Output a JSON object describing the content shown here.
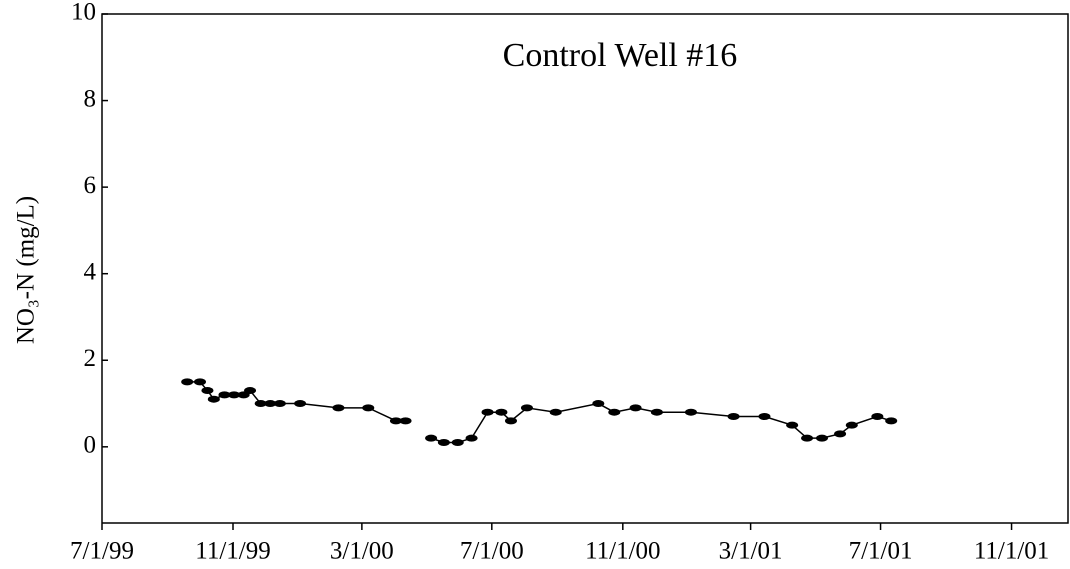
{
  "chart_data": {
    "type": "line",
    "title": "Control Well #16",
    "y_label": "NO₃-N (mg/L)",
    "x": [
      "1999-09-19",
      "1999-10-01",
      "1999-10-08",
      "1999-10-14",
      "1999-10-24",
      "1999-11-02",
      "1999-11-11",
      "1999-11-17",
      "1999-11-27",
      "1999-12-06",
      "1999-12-15",
      "2000-01-03",
      "2000-02-08",
      "2000-03-07",
      "2000-04-02",
      "2000-04-11",
      null,
      "2000-05-05",
      "2000-05-17",
      "2000-05-30",
      "2000-06-12",
      "2000-06-27",
      "2000-07-10",
      "2000-07-19",
      "2000-08-03",
      "2000-08-30",
      "2000-10-09",
      "2000-10-24",
      "2000-11-13",
      "2000-12-03",
      "2001-01-04",
      "2001-02-13",
      "2001-03-14",
      "2001-04-09",
      "2001-04-23",
      "2001-05-07",
      "2001-05-24",
      "2001-06-04",
      "2001-06-28",
      "2001-07-11"
    ],
    "series": [
      {
        "color": "#000000",
        "values": [
          1.5,
          1.5,
          1.3,
          1.1,
          1.2,
          1.2,
          1.2,
          1.3,
          1.0,
          1.0,
          1.0,
          1.0,
          0.9,
          0.9,
          0.6,
          0.6,
          null,
          0.2,
          0.1,
          0.1,
          0.2,
          0.8,
          0.8,
          0.6,
          0.9,
          0.8,
          1.0,
          0.8,
          0.9,
          0.8,
          0.8,
          0.7,
          0.7,
          0.5,
          0.2,
          0.2,
          0.3,
          0.5,
          0.7,
          0.6
        ]
      }
    ],
    "xlim": [
      "1999-07-01",
      "2001-12-24"
    ],
    "xticks": [
      {
        "value": "1999-07-01",
        "label": "7/1/99"
      },
      {
        "value": "1999-11-01",
        "label": "11/1/99"
      },
      {
        "value": "2000-03-01",
        "label": "3/1/00"
      },
      {
        "value": "2000-07-01",
        "label": "7/1/00"
      },
      {
        "value": "2000-11-01",
        "label": "11/1/00"
      },
      {
        "value": "2001-03-01",
        "label": "3/1/01"
      },
      {
        "value": "2001-07-01",
        "label": "7/1/01"
      },
      {
        "value": "2001-11-01",
        "label": "11/1/01"
      }
    ],
    "ylim": [
      -1.76,
      10
    ],
    "yticks": [
      0,
      2,
      4,
      6,
      8,
      10
    ]
  }
}
